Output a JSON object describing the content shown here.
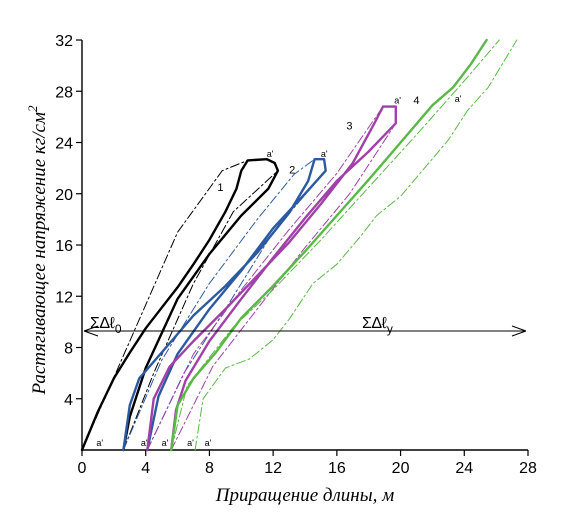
{
  "chart_data": {
    "type": "line",
    "title": "",
    "xlabel": "Приращение длины, м",
    "ylabel": "Растягивающее напряжение кг/см",
    "ylabel_superscript": "2",
    "xlim": [
      0,
      28
    ],
    "ylim": [
      0,
      32
    ],
    "xticks": [
      0,
      4,
      8,
      12,
      16,
      20,
      24,
      28
    ],
    "yticks": [
      4,
      8,
      12,
      16,
      20,
      24,
      28,
      32
    ],
    "grid": false,
    "colors": {
      "curve1": "#000000",
      "curve2": "#2c5aa0",
      "curve3": "#a040a8",
      "curve4": "#5ab846",
      "axis": "#000000"
    },
    "series": [
      {
        "name": "1",
        "style": "solid",
        "points": [
          [
            0,
            0
          ],
          [
            1,
            3
          ],
          [
            2,
            5.6
          ],
          [
            3,
            7.6
          ],
          [
            4,
            9.5
          ],
          [
            5,
            11.1
          ],
          [
            6,
            12.7
          ],
          [
            7,
            14.5
          ],
          [
            8,
            16.4
          ],
          [
            9,
            18.6
          ],
          [
            9.7,
            20.4
          ],
          [
            10,
            21.8
          ],
          [
            10.4,
            22.6
          ],
          [
            11.6,
            22.7
          ],
          [
            12.1,
            22.4
          ],
          [
            12.3,
            21.8
          ],
          [
            11.7,
            20.4
          ],
          [
            10,
            18.3
          ],
          [
            8,
            15.3
          ],
          [
            6,
            11.8
          ],
          [
            4,
            6.4
          ],
          [
            3,
            2.6
          ],
          [
            2.6,
            0
          ]
        ]
      },
      {
        "name": "1",
        "style": "dashdot",
        "points": [
          [
            0,
            0
          ],
          [
            3,
            8.5
          ],
          [
            6,
            17
          ],
          [
            8.8,
            21.8
          ],
          [
            10.4,
            22.6
          ]
        ]
      },
      {
        "name": "1",
        "style": "dashdot",
        "points": [
          [
            2.6,
            0
          ],
          [
            4.5,
            6
          ],
          [
            7,
            13
          ],
          [
            9.5,
            18.6
          ],
          [
            12.3,
            21.8
          ]
        ]
      },
      {
        "name": "2",
        "style": "solid",
        "points": [
          [
            2.6,
            0
          ],
          [
            3,
            3.5
          ],
          [
            3.6,
            5.6
          ],
          [
            5,
            7.6
          ],
          [
            7,
            10.5
          ],
          [
            9,
            12.8
          ],
          [
            11,
            15.4
          ],
          [
            13,
            18.5
          ],
          [
            14.2,
            21
          ],
          [
            14.6,
            22.7
          ],
          [
            15.2,
            22.7
          ],
          [
            15.3,
            21.8
          ],
          [
            14,
            20
          ],
          [
            12,
            17.3
          ],
          [
            10,
            14
          ],
          [
            8,
            11
          ],
          [
            6,
            7.5
          ],
          [
            4.8,
            4.2
          ],
          [
            4.1,
            0
          ]
        ]
      },
      {
        "name": "2",
        "style": "dashdot",
        "points": [
          [
            2.6,
            0
          ],
          [
            5,
            7
          ],
          [
            8,
            13
          ],
          [
            11,
            18
          ],
          [
            13.3,
            21.5
          ],
          [
            14.6,
            22.7
          ]
        ]
      },
      {
        "name": "2",
        "style": "dashdot",
        "points": [
          [
            4.1,
            0
          ],
          [
            6.4,
            6
          ],
          [
            9,
            11
          ],
          [
            12,
            17
          ],
          [
            15.3,
            21.8
          ]
        ]
      },
      {
        "name": "3",
        "style": "solid",
        "points": [
          [
            4.1,
            0
          ],
          [
            4.5,
            4
          ],
          [
            5.5,
            6.5
          ],
          [
            7,
            8.5
          ],
          [
            9,
            11
          ],
          [
            11,
            13.6
          ],
          [
            13,
            16.2
          ],
          [
            15,
            19.2
          ],
          [
            17,
            22.4
          ],
          [
            18.4,
            25.6
          ],
          [
            18.9,
            26.8
          ],
          [
            19.7,
            26.8
          ],
          [
            19.7,
            25.5
          ],
          [
            18,
            23.3
          ],
          [
            16,
            21
          ],
          [
            14,
            18.1
          ],
          [
            12,
            15
          ],
          [
            10,
            11.8
          ],
          [
            8,
            8.5
          ],
          [
            6.5,
            5.4
          ],
          [
            5.9,
            3.1
          ],
          [
            5.6,
            0
          ]
        ]
      },
      {
        "name": "3",
        "style": "dashdot",
        "points": [
          [
            4.1,
            0
          ],
          [
            7,
            7.5
          ],
          [
            10,
            12.5
          ],
          [
            13,
            17.2
          ],
          [
            16,
            21.6
          ],
          [
            18.9,
            26.8
          ]
        ]
      },
      {
        "name": "3",
        "style": "dashdot",
        "points": [
          [
            5.6,
            0
          ],
          [
            8.2,
            6.5
          ],
          [
            11,
            11
          ],
          [
            14,
            15.8
          ],
          [
            16.8,
            20
          ],
          [
            19.7,
            25.5
          ]
        ]
      },
      {
        "name": "4",
        "style": "solid",
        "points": [
          [
            5.6,
            0
          ],
          [
            6,
            3.5
          ],
          [
            7,
            5.6
          ],
          [
            8.4,
            7.6
          ],
          [
            10,
            10.3
          ],
          [
            12,
            12.8
          ],
          [
            14,
            15.5
          ],
          [
            16,
            18.3
          ],
          [
            18,
            21.1
          ],
          [
            20,
            24
          ],
          [
            22,
            26.9
          ],
          [
            23.3,
            28.3
          ],
          [
            24.4,
            30.1
          ],
          [
            25.4,
            32
          ]
        ]
      },
      {
        "name": "4",
        "style": "dashdot",
        "points": [
          [
            5.6,
            0
          ],
          [
            6.6,
            5
          ],
          [
            9.5,
            9.6
          ],
          [
            12,
            12.5
          ],
          [
            15,
            16.4
          ],
          [
            18,
            20.5
          ],
          [
            21,
            24.6
          ],
          [
            24.2,
            29.1
          ],
          [
            26.2,
            32
          ]
        ]
      },
      {
        "name": "4",
        "style": "dashdot",
        "points": [
          [
            7.1,
            0
          ],
          [
            7.6,
            4
          ],
          [
            9,
            6.4
          ],
          [
            10.5,
            7.1
          ],
          [
            12,
            8.6
          ],
          [
            13,
            10.2
          ],
          [
            14.5,
            13
          ],
          [
            16,
            14.5
          ],
          [
            17.5,
            16.7
          ],
          [
            18.5,
            18.3
          ],
          [
            20,
            19.8
          ],
          [
            21.5,
            22
          ],
          [
            23,
            24.2
          ],
          [
            24.2,
            26.5
          ],
          [
            25.5,
            28.3
          ],
          [
            27.3,
            32
          ]
        ]
      }
    ],
    "curve_labels": [
      "1",
      "2",
      "3",
      "4"
    ],
    "point_marker": "a'",
    "horizontal_arrow_y": 9.3,
    "annotations": {
      "left_arrow": "Σ∆ℓ",
      "left_arrow_sub": "0",
      "right_arrow": "Σ∆ℓ",
      "right_arrow_sub": "у"
    }
  }
}
